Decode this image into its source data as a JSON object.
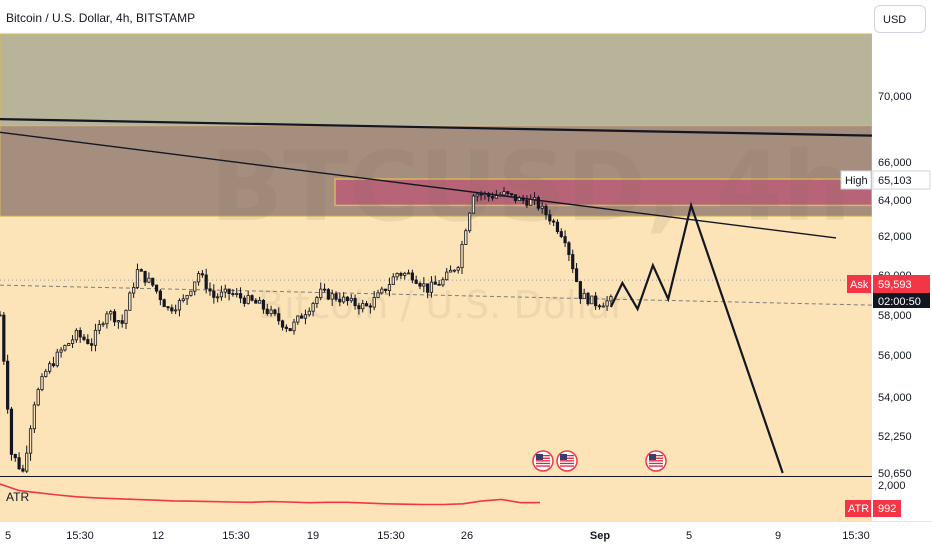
{
  "header": {
    "title": "Bitcoin / U.S. Dollar, 4h, BITSTAMP",
    "currency_button": "USD"
  },
  "watermark": {
    "symbol": "BTCUSD, 4h",
    "description": "Bitcoin / U.S. Dollar"
  },
  "colors": {
    "background_upper": "#b8b49a",
    "resistance_zone": "#a58e7e",
    "supply_box": "#b86478",
    "body_background": "#fce3b8",
    "candle": "#131722",
    "ask_badge": "#f23645",
    "atr_line": "#f23645",
    "price_axis_bg": "#ffffff"
  },
  "price_axis": {
    "ticks": [
      "70,000",
      "66,000",
      "64,000",
      "62,000",
      "60,000",
      "58,000",
      "56,000",
      "54,000",
      "52,250",
      "50,650"
    ],
    "high_label": "High",
    "high_value": "65,103",
    "ask_label": "Ask",
    "ask_value": "59,593",
    "countdown": "02:00:50"
  },
  "atr_pane": {
    "label": "ATR",
    "axis_tick": "2,000",
    "badge_label": "ATR",
    "badge_value": "992"
  },
  "time_axis": {
    "labels": [
      "5",
      "15:30",
      "12",
      "15:30",
      "19",
      "15:30",
      "26",
      "Sep",
      "5",
      "9",
      "15:30"
    ]
  },
  "events": [
    {
      "icon": "us-flag-icon"
    },
    {
      "icon": "us-flag-icon"
    },
    {
      "icon": "us-flag-icon"
    }
  ],
  "chart_data": {
    "type": "candlestick",
    "title": "Bitcoin / U.S. Dollar, 4h, BITSTAMP",
    "ylim": [
      50650,
      72700
    ],
    "y_ticks": [
      70000,
      66000,
      64000,
      62000,
      60000,
      58000,
      56000,
      54000,
      52250,
      50650
    ],
    "x_ticks": [
      "5",
      "15:30",
      "12",
      "15:30",
      "19",
      "15:30",
      "26",
      "Sep",
      "5",
      "9",
      "15:30"
    ],
    "last_price": 59593,
    "high": 65103,
    "price_path": [
      [
        0,
        58000
      ],
      [
        3,
        51500
      ],
      [
        6,
        50700
      ],
      [
        9,
        53800
      ],
      [
        12,
        55200
      ],
      [
        16,
        56200
      ],
      [
        20,
        57000
      ],
      [
        24,
        56600
      ],
      [
        28,
        58200
      ],
      [
        32,
        57600
      ],
      [
        36,
        60200
      ],
      [
        40,
        59500
      ],
      [
        44,
        58300
      ],
      [
        48,
        58700
      ],
      [
        52,
        60100
      ],
      [
        56,
        58900
      ],
      [
        60,
        59100
      ],
      [
        64,
        58800
      ],
      [
        68,
        58500
      ],
      [
        72,
        57900
      ],
      [
        76,
        57300
      ],
      [
        80,
        58200
      ],
      [
        84,
        59100
      ],
      [
        88,
        58900
      ],
      [
        92,
        58600
      ],
      [
        96,
        58400
      ],
      [
        100,
        59100
      ],
      [
        104,
        60100
      ],
      [
        108,
        60000
      ],
      [
        112,
        59300
      ],
      [
        116,
        59700
      ],
      [
        120,
        60600
      ],
      [
        124,
        64400
      ],
      [
        128,
        64200
      ],
      [
        132,
        64300
      ],
      [
        136,
        64000
      ],
      [
        140,
        63900
      ],
      [
        144,
        63000
      ],
      [
        148,
        61900
      ],
      [
        152,
        59000
      ],
      [
        156,
        58600
      ],
      [
        160,
        58700
      ]
    ],
    "projection_path": [
      [
        160,
        58400
      ],
      [
        163,
        59600
      ],
      [
        167,
        58300
      ],
      [
        171,
        60500
      ],
      [
        175,
        58800
      ],
      [
        181,
        63700
      ],
      [
        205,
        50650
      ]
    ],
    "x_slot_range": [
      0,
      220
    ],
    "zones": [
      {
        "name": "upper range",
        "from": 68200,
        "to": 72700
      },
      {
        "name": "resistance zone",
        "from": 63100,
        "to": 68200
      },
      {
        "name": "supply box",
        "from": 63700,
        "to": 65103
      }
    ],
    "trendlines": [
      {
        "from": [
          0,
          68600
        ],
        "to": [
          220,
          67600
        ]
      },
      {
        "from": [
          0,
          67800
        ],
        "to": [
          220,
          61900
        ]
      }
    ],
    "atr_series": [
      1500,
      1320,
      1260,
      1200,
      1150,
      1120,
      1100,
      1080,
      1060,
      1040,
      1030,
      1020,
      1010,
      1000,
      1020,
      1010,
      990,
      1000,
      1000,
      980,
      960,
      950,
      940,
      940,
      960,
      1040,
      1080,
      990,
      992
    ],
    "atr_last": 992
  }
}
